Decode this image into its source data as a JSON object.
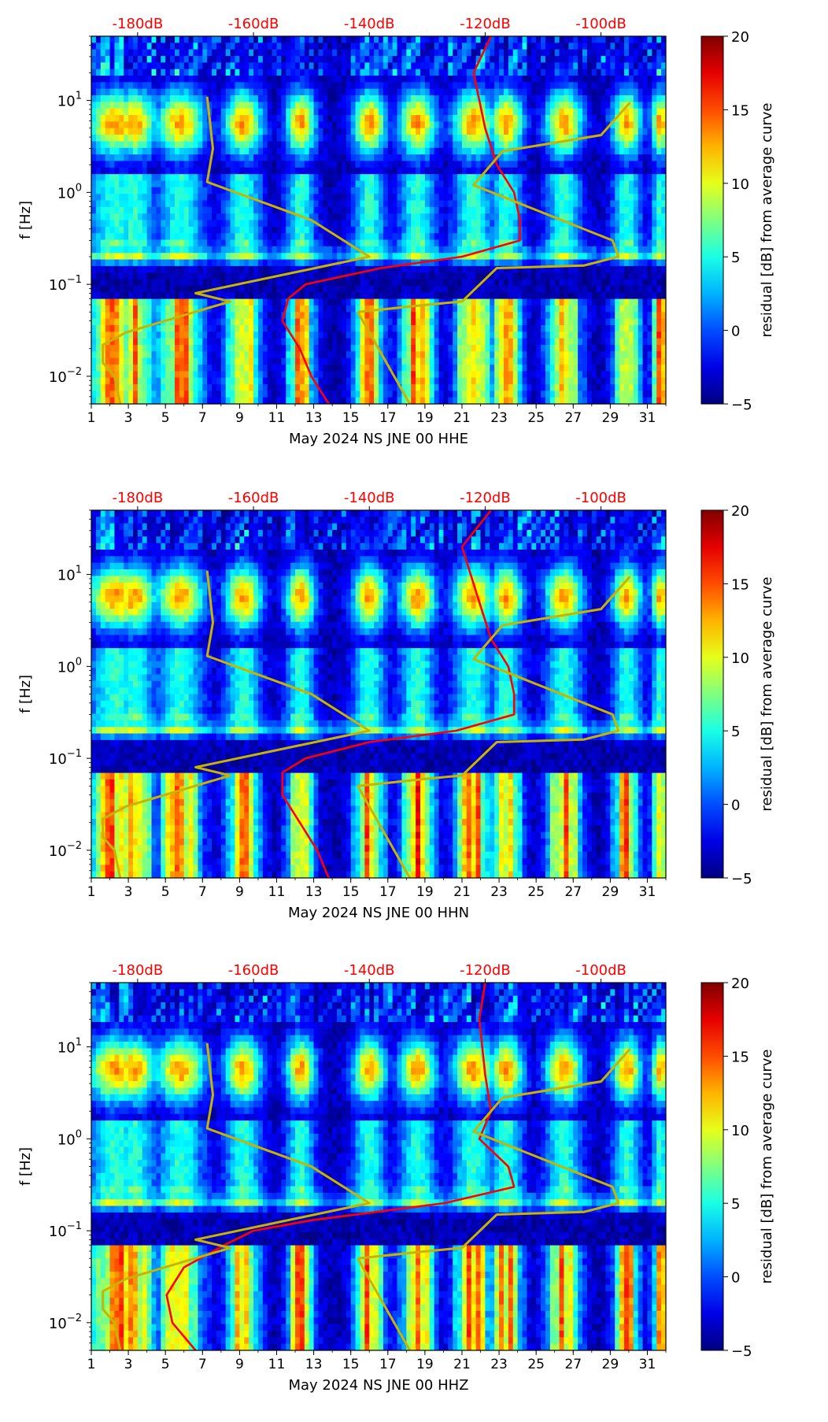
{
  "chart_data": [
    {
      "type": "heatmap",
      "xlabel": "May 2024 NS JNE 00 HHE",
      "ylabel": "f [Hz]",
      "x_ticks": [
        "1",
        "3",
        "5",
        "7",
        "9",
        "11",
        "13",
        "15",
        "17",
        "19",
        "21",
        "23",
        "25",
        "27",
        "29",
        "31"
      ],
      "xlim": [
        1,
        32
      ],
      "y_scale": "log",
      "ylim": [
        0.005,
        50
      ],
      "y_ticks": [
        {
          "base": "10",
          "exp": "1"
        },
        {
          "base": "10",
          "exp": "0"
        },
        {
          "base": "10",
          "exp": "−1"
        },
        {
          "base": "10",
          "exp": "−2"
        }
      ],
      "top_axis_ticks": [
        "-180dB",
        "-160dB",
        "-140dB",
        "-120dB",
        "-100dB"
      ],
      "top_axis_color": "#ff0000",
      "colorbar": {
        "label": "residual [dB] from average curve",
        "min": -5,
        "max": 20,
        "ticks": [
          "20",
          "15",
          "10",
          "5",
          "0",
          "−5"
        ],
        "colormap": "jet"
      },
      "series": [
        {
          "color": "#ff0000",
          "points": [
            [
              -119,
              50
            ],
            [
              -122,
              20
            ],
            [
              -120,
              5
            ],
            [
              -118,
              2
            ],
            [
              -115,
              1
            ],
            [
              -114,
              0.5
            ],
            [
              -114,
              0.3
            ],
            [
              -124,
              0.2
            ],
            [
              -138,
              0.15
            ],
            [
              -151,
              0.1
            ],
            [
              -154,
              0.07
            ],
            [
              -155,
              0.04
            ],
            [
              -152,
              0.02
            ],
            [
              -150,
              0.01
            ],
            [
              -147,
              0.005
            ]
          ]
        },
        {
          "color": "#c8b400",
          "points": [
            [
              -168,
              11
            ],
            [
              -167,
              3
            ],
            [
              -168,
              1.3
            ],
            [
              -150,
              0.5
            ],
            [
              -140,
              0.2
            ],
            [
              -170,
              0.08
            ],
            [
              -164,
              0.065
            ],
            [
              -182,
              0.03
            ],
            [
              -186,
              0.022
            ],
            [
              -186,
              0.014
            ],
            [
              -184,
              0.01
            ],
            [
              -183,
              0.005
            ]
          ]
        },
        {
          "color": "#c8b400",
          "points": [
            [
              -142,
              0.05
            ],
            [
              -130,
              0.06
            ],
            [
              -124,
              0.065
            ],
            [
              -118,
              0.15
            ],
            [
              -103,
              0.16
            ],
            [
              -97,
              0.2
            ],
            [
              -98,
              0.3
            ],
            [
              -122,
              1.2
            ],
            [
              -117,
              2.8
            ],
            [
              -100,
              4.2
            ],
            [
              -95,
              9.5
            ]
          ]
        },
        {
          "color": "#c8b400",
          "points": [
            [
              -142,
              0.05
            ],
            [
              -133,
              0.005
            ]
          ]
        }
      ]
    },
    {
      "type": "heatmap",
      "xlabel": "May 2024 NS JNE 00 HHN",
      "ylabel": "f [Hz]",
      "x_ticks": [
        "1",
        "3",
        "5",
        "7",
        "9",
        "11",
        "13",
        "15",
        "17",
        "19",
        "21",
        "23",
        "25",
        "27",
        "29",
        "31"
      ],
      "xlim": [
        1,
        32
      ],
      "y_scale": "log",
      "ylim": [
        0.005,
        50
      ],
      "y_ticks": [
        {
          "base": "10",
          "exp": "1"
        },
        {
          "base": "10",
          "exp": "0"
        },
        {
          "base": "10",
          "exp": "−1"
        },
        {
          "base": "10",
          "exp": "−2"
        }
      ],
      "top_axis_ticks": [
        "-180dB",
        "-160dB",
        "-140dB",
        "-120dB",
        "-100dB"
      ],
      "top_axis_color": "#ff0000",
      "colorbar": {
        "label": "residual [dB] from average curve",
        "min": -5,
        "max": 20,
        "ticks": [
          "20",
          "15",
          "10",
          "5",
          "0",
          "−5"
        ],
        "colormap": "jet"
      },
      "series": [
        {
          "color": "#ff0000",
          "points": [
            [
              -119,
              50
            ],
            [
              -124,
              20
            ],
            [
              -121,
              5
            ],
            [
              -119,
              2
            ],
            [
              -116,
              1
            ],
            [
              -115,
              0.5
            ],
            [
              -115,
              0.3
            ],
            [
              -125,
              0.2
            ],
            [
              -140,
              0.15
            ],
            [
              -151,
              0.1
            ],
            [
              -155,
              0.07
            ],
            [
              -155,
              0.04
            ],
            [
              -152,
              0.02
            ],
            [
              -149,
              0.01
            ],
            [
              -147,
              0.005
            ]
          ]
        },
        {
          "color": "#c8b400",
          "points": [
            [
              -168,
              11
            ],
            [
              -167,
              3
            ],
            [
              -168,
              1.3
            ],
            [
              -150,
              0.5
            ],
            [
              -140,
              0.2
            ],
            [
              -170,
              0.08
            ],
            [
              -164,
              0.065
            ],
            [
              -182,
              0.03
            ],
            [
              -186,
              0.022
            ],
            [
              -186,
              0.014
            ],
            [
              -184,
              0.01
            ],
            [
              -183,
              0.005
            ]
          ]
        },
        {
          "color": "#c8b400",
          "points": [
            [
              -142,
              0.05
            ],
            [
              -130,
              0.06
            ],
            [
              -124,
              0.065
            ],
            [
              -118,
              0.15
            ],
            [
              -103,
              0.16
            ],
            [
              -97,
              0.2
            ],
            [
              -98,
              0.3
            ],
            [
              -122,
              1.2
            ],
            [
              -117,
              2.8
            ],
            [
              -100,
              4.2
            ],
            [
              -95,
              9.5
            ]
          ]
        },
        {
          "color": "#c8b400",
          "points": [
            [
              -142,
              0.05
            ],
            [
              -133,
              0.005
            ]
          ]
        }
      ]
    },
    {
      "type": "heatmap",
      "xlabel": "May 2024 NS JNE 00 HHZ",
      "ylabel": "f [Hz]",
      "x_ticks": [
        "1",
        "3",
        "5",
        "7",
        "9",
        "11",
        "13",
        "15",
        "17",
        "19",
        "21",
        "23",
        "25",
        "27",
        "29",
        "31"
      ],
      "xlim": [
        1,
        32
      ],
      "y_scale": "log",
      "ylim": [
        0.005,
        50
      ],
      "y_ticks": [
        {
          "base": "10",
          "exp": "1"
        },
        {
          "base": "10",
          "exp": "0"
        },
        {
          "base": "10",
          "exp": "−1"
        },
        {
          "base": "10",
          "exp": "−2"
        }
      ],
      "top_axis_ticks": [
        "-180dB",
        "-160dB",
        "-140dB",
        "-120dB",
        "-100dB"
      ],
      "top_axis_color": "#ff0000",
      "colorbar": {
        "label": "residual [dB] from average curve",
        "min": -5,
        "max": 20,
        "ticks": [
          "20",
          "15",
          "10",
          "5",
          "0",
          "−5"
        ],
        "colormap": "jet"
      },
      "series": [
        {
          "color": "#ff0000",
          "points": [
            [
              -120,
              50
            ],
            [
              -121,
              20
            ],
            [
              -120,
              5
            ],
            [
              -119,
              2
            ],
            [
              -121,
              1
            ],
            [
              -116,
              0.5
            ],
            [
              -115,
              0.3
            ],
            [
              -127,
              0.2
            ],
            [
              -150,
              0.13
            ],
            [
              -160,
              0.1
            ],
            [
              -165,
              0.07
            ],
            [
              -172,
              0.04
            ],
            [
              -175,
              0.02
            ],
            [
              -174,
              0.01
            ],
            [
              -170,
              0.005
            ]
          ]
        },
        {
          "color": "#c8b400",
          "points": [
            [
              -168,
              11
            ],
            [
              -167,
              3
            ],
            [
              -168,
              1.3
            ],
            [
              -150,
              0.5
            ],
            [
              -140,
              0.2
            ],
            [
              -170,
              0.08
            ],
            [
              -164,
              0.065
            ],
            [
              -182,
              0.03
            ],
            [
              -186,
              0.022
            ],
            [
              -186,
              0.014
            ],
            [
              -184,
              0.01
            ],
            [
              -183,
              0.005
            ]
          ]
        },
        {
          "color": "#c8b400",
          "points": [
            [
              -142,
              0.05
            ],
            [
              -130,
              0.06
            ],
            [
              -124,
              0.065
            ],
            [
              -118,
              0.15
            ],
            [
              -103,
              0.16
            ],
            [
              -97,
              0.2
            ],
            [
              -98,
              0.3
            ],
            [
              -122,
              1.2
            ],
            [
              -117,
              2.8
            ],
            [
              -100,
              4.2
            ],
            [
              -95,
              9.5
            ]
          ]
        },
        {
          "color": "#c8b400",
          "points": [
            [
              -142,
              0.05
            ],
            [
              -133,
              0.005
            ]
          ]
        }
      ]
    }
  ]
}
